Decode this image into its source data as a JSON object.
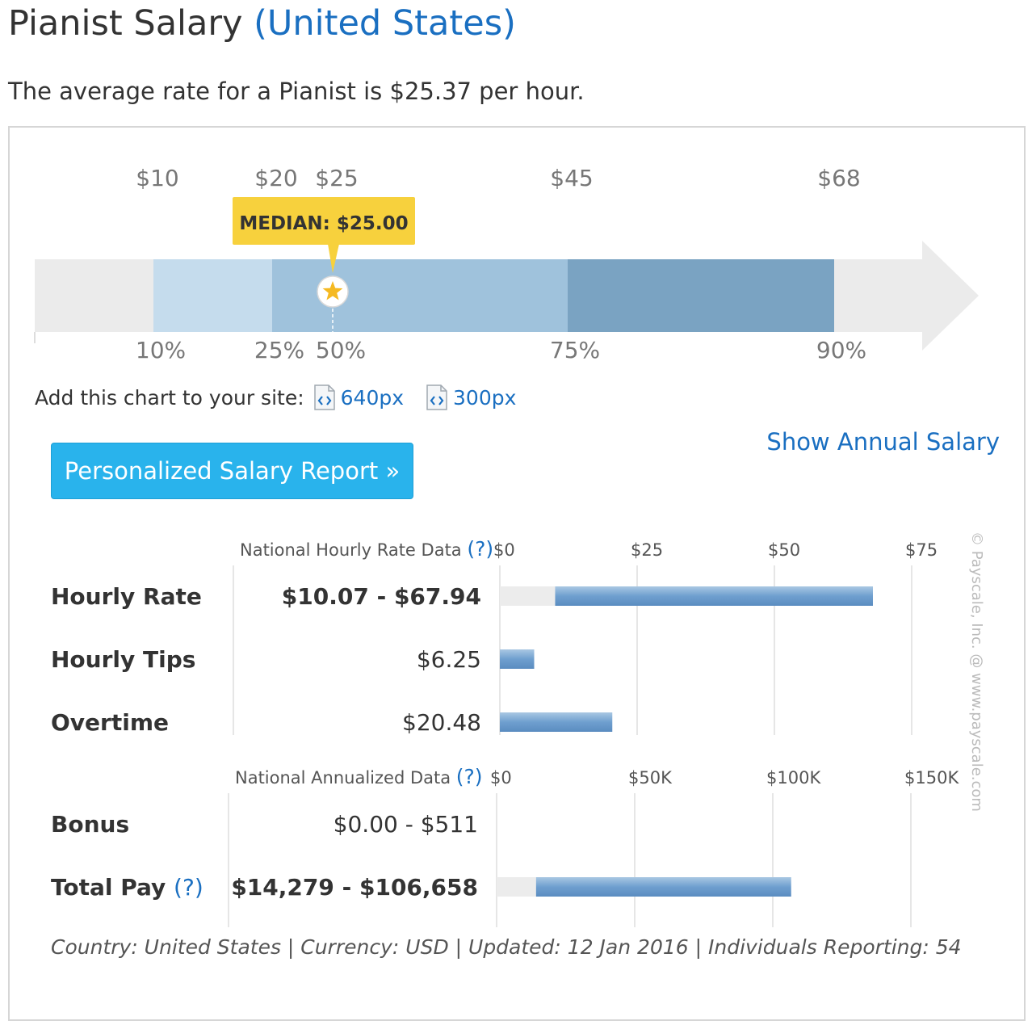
{
  "header": {
    "title": "Pianist Salary",
    "country": "(United States)",
    "summary": "The average rate for a Pianist is $25.37 per hour."
  },
  "range_chart": {
    "percentiles": [
      {
        "pct": "10%",
        "value_label": "$10",
        "value": 10
      },
      {
        "pct": "25%",
        "value_label": "$20",
        "value": 20
      },
      {
        "pct": "50%",
        "value_label": "$25",
        "value": 25
      },
      {
        "pct": "75%",
        "value_label": "$45",
        "value": 45
      },
      {
        "pct": "90%",
        "value_label": "$68",
        "value": 68
      }
    ],
    "median_label": "MEDIAN: $25.00",
    "colors": {
      "p10_25": "#c5dced",
      "p25_75": "#9fc2dc",
      "p75_90": "#7aa3c2",
      "track": "#ebebeb",
      "callout": "#f7d13d",
      "star": "#f5b921"
    }
  },
  "embed": {
    "label": "Add this chart to your site:",
    "links": [
      "640px",
      "300px"
    ]
  },
  "show_annual": "Show Annual Salary",
  "report_button": "Personalized Salary Report »",
  "chart_data": [
    {
      "type": "bar",
      "section_label": "National Hourly Rate Data",
      "help": "(?)",
      "axis_ticks": [
        "$0",
        "$25",
        "$50",
        "$75"
      ],
      "axis_values": [
        0,
        25,
        50,
        75
      ],
      "rows": [
        {
          "label": "Hourly Rate",
          "value_text": "$10.07 - $67.94",
          "min": 10.07,
          "max": 67.94
        },
        {
          "label": "Hourly Tips",
          "value_text": "$6.25",
          "min": 0,
          "max": 6.25
        },
        {
          "label": "Overtime",
          "value_text": "$20.48",
          "min": 0,
          "max": 20.48
        }
      ]
    },
    {
      "type": "bar",
      "section_label": "National Annualized Data",
      "help": "(?)",
      "axis_ticks": [
        "$0",
        "$50K",
        "$100K",
        "$150K"
      ],
      "axis_values": [
        0,
        50000,
        100000,
        150000
      ],
      "rows": [
        {
          "label": "Bonus",
          "value_text": "$0.00 - $511",
          "min": 0,
          "max": 511
        },
        {
          "label": "Total Pay",
          "label_help": "(?)",
          "value_text": "$14,279 - $106,658",
          "min": 14279,
          "max": 106658
        }
      ]
    }
  ],
  "watermark": "© Payscale, Inc. @ www.payscale.com",
  "footer": "Country: United States | Currency: USD | Updated: 12 Jan 2016 | Individuals Reporting: 54"
}
